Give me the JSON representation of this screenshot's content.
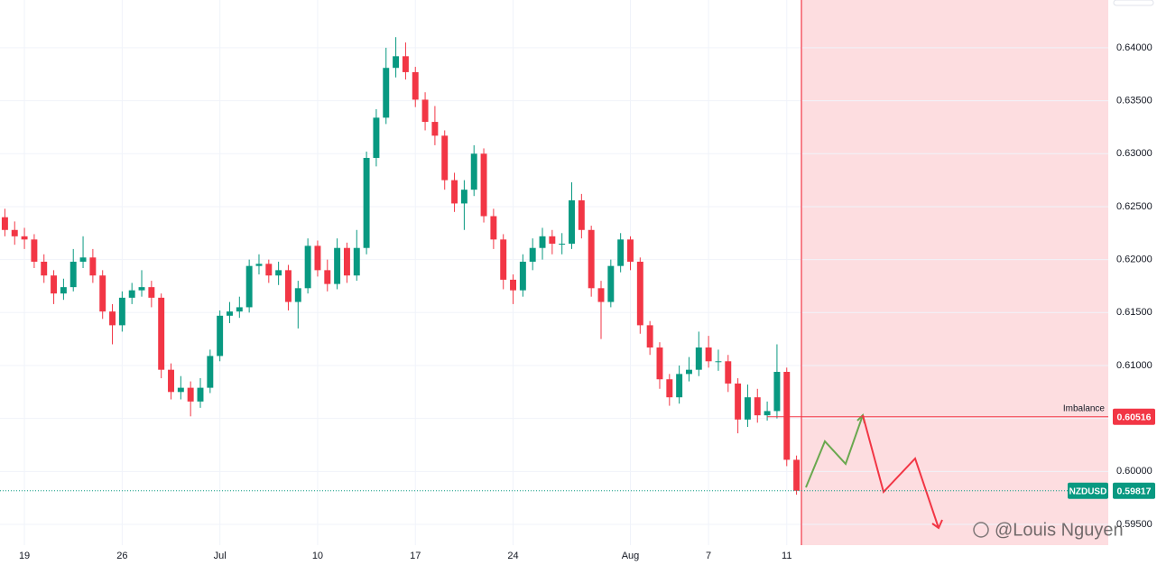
{
  "chart_data": {
    "type": "candlestick",
    "categories": [
      null,
      null,
      "19",
      null,
      null,
      null,
      null,
      null,
      null,
      null,
      null,
      null,
      "26",
      null,
      null,
      null,
      null,
      null,
      null,
      null,
      null,
      null,
      "Jul",
      null,
      null,
      null,
      null,
      null,
      null,
      null,
      null,
      null,
      "10",
      null,
      null,
      null,
      null,
      null,
      null,
      null,
      null,
      null,
      "17",
      null,
      null,
      null,
      null,
      null,
      null,
      null,
      null,
      null,
      "24",
      null,
      null,
      null,
      null,
      null,
      null,
      null,
      null,
      null,
      null,
      null,
      "Aug",
      null,
      null,
      null,
      null,
      null,
      null,
      null,
      "7",
      null,
      null,
      null,
      null,
      null,
      null,
      null,
      "11",
      null
    ],
    "open": [
      0.624,
      0.6228,
      0.6222,
      0.6219,
      0.6198,
      0.6185,
      0.6168,
      0.6174,
      0.6198,
      0.6202,
      0.6185,
      0.6151,
      0.6138,
      0.6164,
      0.6171,
      0.6174,
      0.6164,
      0.6096,
      0.6075,
      0.6079,
      0.6066,
      0.6079,
      0.6109,
      0.6147,
      0.6151,
      0.6155,
      0.6194,
      0.6196,
      0.6185,
      0.619,
      0.616,
      0.6173,
      0.6213,
      0.619,
      0.6177,
      0.6211,
      0.6185,
      0.6211,
      0.6296,
      0.6334,
      0.6381,
      0.6392,
      0.6377,
      0.6351,
      0.633,
      0.6317,
      0.6275,
      0.6253,
      0.6266,
      0.63,
      0.6241,
      0.6219,
      0.6181,
      0.6171,
      0.6198,
      0.6211,
      0.6222,
      0.6215,
      0.6215,
      0.6256,
      0.6228,
      0.6173,
      0.616,
      0.6194,
      0.6219,
      0.6198,
      0.6138,
      0.6117,
      0.6087,
      0.607,
      0.6092,
      0.6096,
      0.6117,
      0.6104,
      0.6104,
      0.6083,
      0.6049,
      0.607,
      0.6053,
      0.6057,
      0.6094,
      0.6011
    ],
    "high": [
      0.6248,
      0.6236,
      0.623,
      0.6224,
      0.6205,
      0.619,
      0.6182,
      0.621,
      0.6222,
      0.621,
      0.619,
      0.6158,
      0.617,
      0.6178,
      0.619,
      0.618,
      0.6168,
      0.6102,
      0.609,
      0.6085,
      0.6088,
      0.6115,
      0.6152,
      0.616,
      0.6165,
      0.62,
      0.6205,
      0.62,
      0.6198,
      0.6195,
      0.618,
      0.622,
      0.6218,
      0.62,
      0.622,
      0.6216,
      0.6228,
      0.6302,
      0.6342,
      0.64,
      0.641,
      0.6405,
      0.6382,
      0.6358,
      0.6345,
      0.6322,
      0.6282,
      0.6275,
      0.6308,
      0.6305,
      0.6248,
      0.6224,
      0.6186,
      0.6205,
      0.622,
      0.623,
      0.6228,
      0.6225,
      0.6273,
      0.6262,
      0.6232,
      0.618,
      0.62,
      0.6225,
      0.6222,
      0.6202,
      0.6142,
      0.6122,
      0.6092,
      0.61,
      0.6108,
      0.6132,
      0.6128,
      0.6115,
      0.611,
      0.6088,
      0.6082,
      0.6078,
      0.6066,
      0.612,
      0.6098,
      0.6015
    ],
    "low": [
      0.6222,
      0.6214,
      0.621,
      0.6192,
      0.6178,
      0.6158,
      0.6162,
      0.617,
      0.6192,
      0.6178,
      0.6144,
      0.612,
      0.6132,
      0.6158,
      0.6165,
      0.6155,
      0.6088,
      0.6068,
      0.6068,
      0.6052,
      0.606,
      0.6074,
      0.6104,
      0.614,
      0.6145,
      0.615,
      0.6186,
      0.6178,
      0.6176,
      0.6152,
      0.6135,
      0.6168,
      0.6184,
      0.617,
      0.6172,
      0.6178,
      0.618,
      0.6205,
      0.6288,
      0.6328,
      0.6372,
      0.637,
      0.6344,
      0.6322,
      0.6308,
      0.6266,
      0.6245,
      0.6228,
      0.626,
      0.6235,
      0.621,
      0.6172,
      0.6158,
      0.6165,
      0.619,
      0.62,
      0.6205,
      0.6205,
      0.621,
      0.622,
      0.6165,
      0.6125,
      0.6155,
      0.6188,
      0.619,
      0.613,
      0.611,
      0.6078,
      0.6062,
      0.6064,
      0.6085,
      0.609,
      0.6098,
      0.6095,
      0.6075,
      0.6036,
      0.6042,
      0.6046,
      0.6048,
      0.605,
      0.6005,
      0.5978
    ],
    "close": [
      0.6228,
      0.6222,
      0.6219,
      0.6198,
      0.6185,
      0.6168,
      0.6174,
      0.6198,
      0.6202,
      0.6185,
      0.6151,
      0.6138,
      0.6164,
      0.6171,
      0.6174,
      0.6164,
      0.6096,
      0.6075,
      0.6079,
      0.6066,
      0.6079,
      0.6109,
      0.6147,
      0.6151,
      0.6155,
      0.6194,
      0.6196,
      0.6185,
      0.619,
      0.616,
      0.6173,
      0.6213,
      0.619,
      0.6177,
      0.6211,
      0.6185,
      0.6211,
      0.6296,
      0.6334,
      0.6381,
      0.6392,
      0.6377,
      0.6351,
      0.633,
      0.6317,
      0.6275,
      0.6253,
      0.6266,
      0.63,
      0.6241,
      0.6219,
      0.6181,
      0.6171,
      0.6198,
      0.6211,
      0.6222,
      0.6215,
      0.6215,
      0.6256,
      0.6228,
      0.6173,
      0.616,
      0.6194,
      0.6219,
      0.6198,
      0.6138,
      0.6117,
      0.6087,
      0.607,
      0.6092,
      0.6096,
      0.6117,
      0.6104,
      0.6104,
      0.6083,
      0.6049,
      0.607,
      0.6053,
      0.6057,
      0.6094,
      0.6011,
      0.59817
    ],
    "up_color": "#089981",
    "down_color": "#f23645",
    "ylim": [
      0.59304,
      0.64451
    ],
    "yticks": [
      {
        "value": 0.595,
        "label": "0.59500"
      },
      {
        "value": 0.6,
        "label": "0.60000"
      },
      {
        "value": 0.605,
        "label": "0.60500"
      },
      {
        "value": 0.61,
        "label": "0.61000"
      },
      {
        "value": 0.615,
        "label": "0.61500"
      },
      {
        "value": 0.62,
        "label": "0.62000"
      },
      {
        "value": 0.625,
        "label": "0.62500"
      },
      {
        "value": 0.63,
        "label": "0.63000"
      },
      {
        "value": 0.635,
        "label": "0.63500"
      },
      {
        "value": 0.64,
        "label": "0.64000"
      }
    ],
    "grid": true,
    "imbalance": {
      "label": "Imbalance",
      "value": 0.60516
    },
    "last_price": {
      "symbol": "NZDUSD",
      "value": 0.59817
    },
    "watermark": "@Louis Nguyen"
  }
}
